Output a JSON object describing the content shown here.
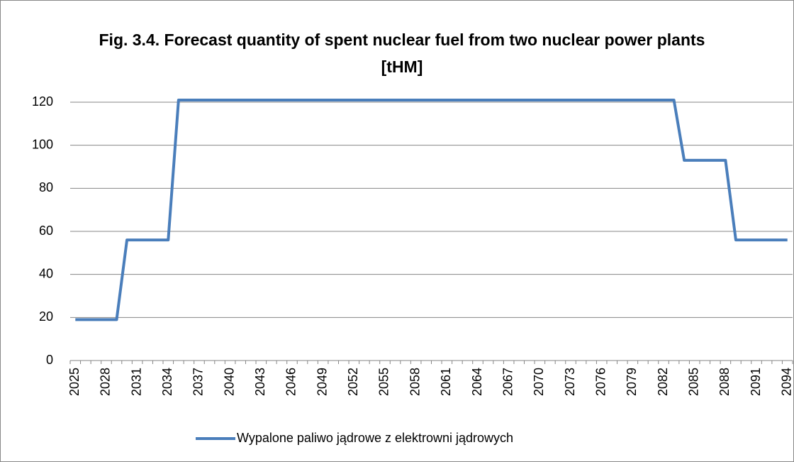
{
  "chart_data": {
    "type": "line",
    "title": "Fig. 3.4. Forecast quantity of spent nuclear fuel from two nuclear power plants\n[tHM]",
    "categories": [
      "2025",
      null,
      null,
      "2028",
      null,
      null,
      "2031",
      null,
      null,
      "2034",
      null,
      null,
      "2037",
      null,
      null,
      "2040",
      null,
      null,
      "2043",
      null,
      null,
      "2046",
      null,
      null,
      "2049",
      null,
      null,
      "2052",
      null,
      null,
      "2055",
      null,
      null,
      "2058",
      null,
      null,
      "2061",
      null,
      null,
      "2064",
      null,
      null,
      "2067",
      null,
      null,
      "2070",
      null,
      null,
      "2073",
      null,
      null,
      "2076",
      null,
      null,
      "2079",
      null,
      null,
      "2082",
      null,
      null,
      "2085",
      null,
      null,
      "2088",
      null,
      null,
      "2091",
      null,
      null,
      "2094"
    ],
    "series": [
      {
        "name": "Wypalone paliwo jądrowe z elektrowni jądrowych",
        "color": "#4a7ebb",
        "values": [
          19,
          19,
          19,
          19,
          19,
          56,
          56,
          56,
          56,
          56,
          121,
          121,
          121,
          121,
          121,
          121,
          121,
          121,
          121,
          121,
          121,
          121,
          121,
          121,
          121,
          121,
          121,
          121,
          121,
          121,
          121,
          121,
          121,
          121,
          121,
          121,
          121,
          121,
          121,
          121,
          121,
          121,
          121,
          121,
          121,
          121,
          121,
          121,
          121,
          121,
          121,
          121,
          121,
          121,
          121,
          121,
          121,
          121,
          121,
          93,
          93,
          93,
          93,
          93,
          56,
          56,
          56,
          56,
          56,
          56
        ]
      }
    ],
    "ylim": [
      0,
      120
    ],
    "yticks": [
      0,
      20,
      40,
      60,
      80,
      100,
      120
    ],
    "grid": true,
    "legend": "bottom"
  }
}
